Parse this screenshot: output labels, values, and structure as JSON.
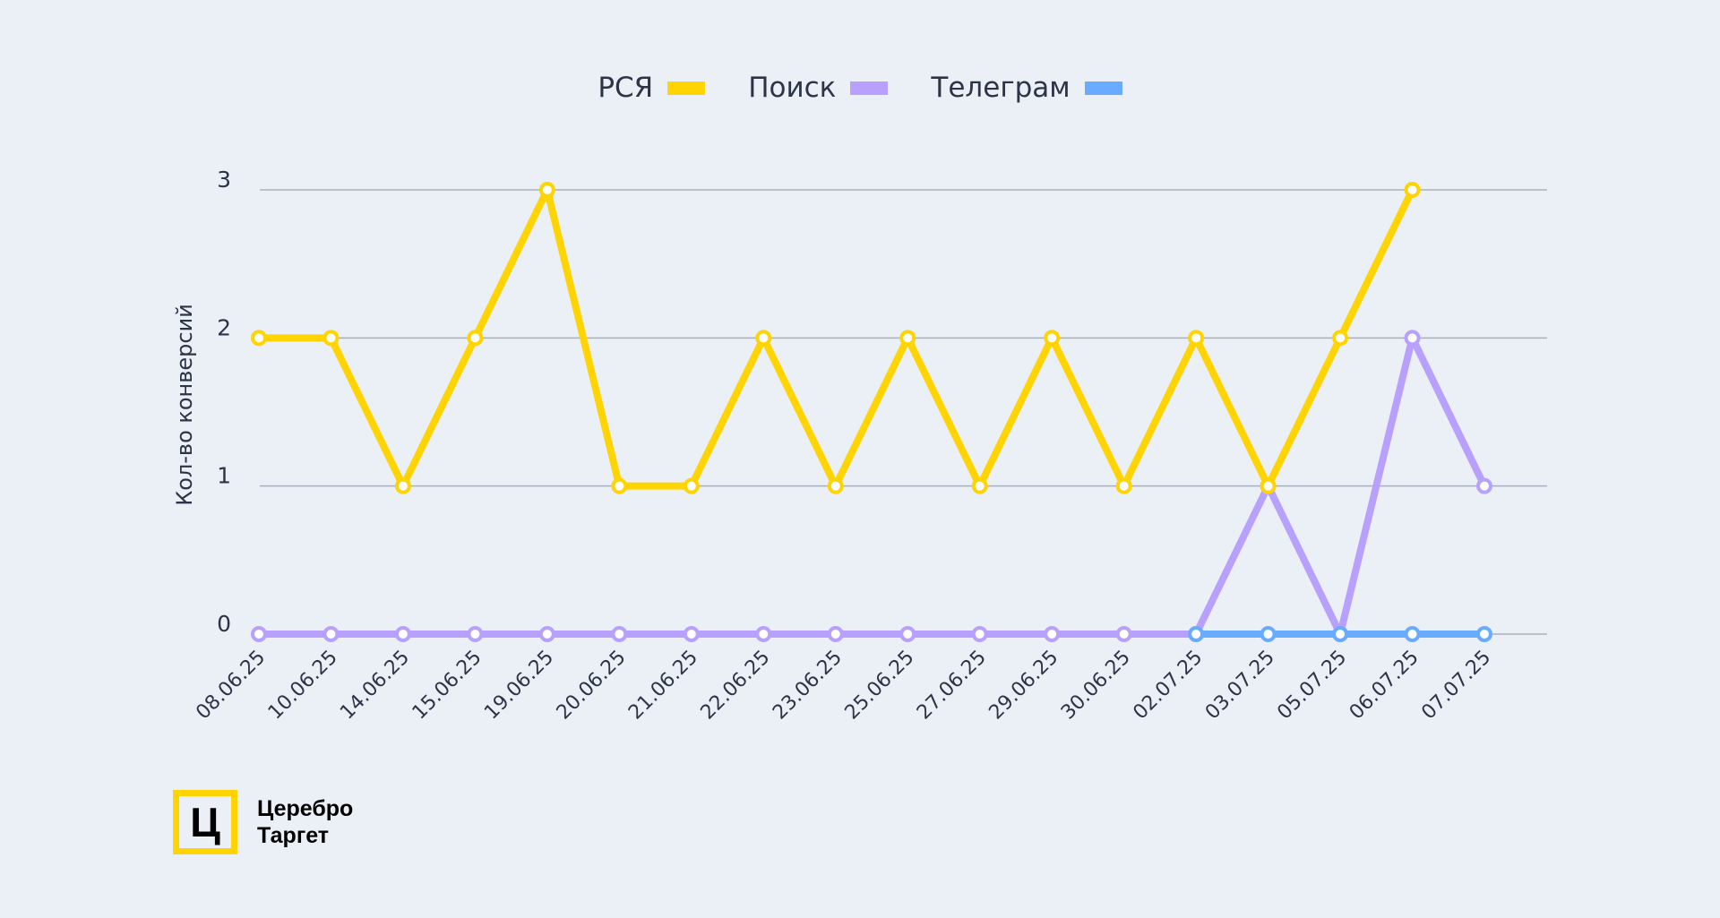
{
  "chart_data": {
    "type": "line",
    "title": "",
    "xlabel": "",
    "ylabel": "Кол-во конверсий",
    "ylim": [
      0,
      3
    ],
    "yticks": [
      0,
      1,
      2,
      3
    ],
    "grid": true,
    "legend_position": "top-center",
    "categories": [
      "08.06.25",
      "10.06.25",
      "14.06.25",
      "15.06.25",
      "19.06.25",
      "20.06.25",
      "21.06.25",
      "22.06.25",
      "23.06.25",
      "25.06.25",
      "27.06.25",
      "29.06.25",
      "30.06.25",
      "02.07.25",
      "03.07.25",
      "05.07.25",
      "06.07.25",
      "07.07.25"
    ],
    "series": [
      {
        "name": "РСЯ",
        "color": "#ffd400",
        "values": [
          2,
          2,
          1,
          2,
          3,
          1,
          1,
          2,
          1,
          2,
          1,
          2,
          1,
          2,
          1,
          2,
          3,
          null
        ]
      },
      {
        "name": "Телеграм",
        "color": "#69acff",
        "values": [
          null,
          null,
          null,
          null,
          null,
          null,
          null,
          null,
          null,
          null,
          null,
          null,
          null,
          0,
          0,
          0,
          0,
          0
        ]
      },
      {
        "name": "Поиск",
        "color": "#b8a0ff",
        "values": [
          0,
          0,
          0,
          0,
          0,
          0,
          0,
          0,
          0,
          0,
          0,
          0,
          0,
          0,
          1,
          0,
          2,
          1
        ]
      }
    ],
    "legend_order": [
      "РСЯ",
      "Поиск",
      "Телеграм"
    ]
  },
  "logo": {
    "mark": "Ц",
    "line1": "Церебро",
    "line2": "Таргет"
  }
}
